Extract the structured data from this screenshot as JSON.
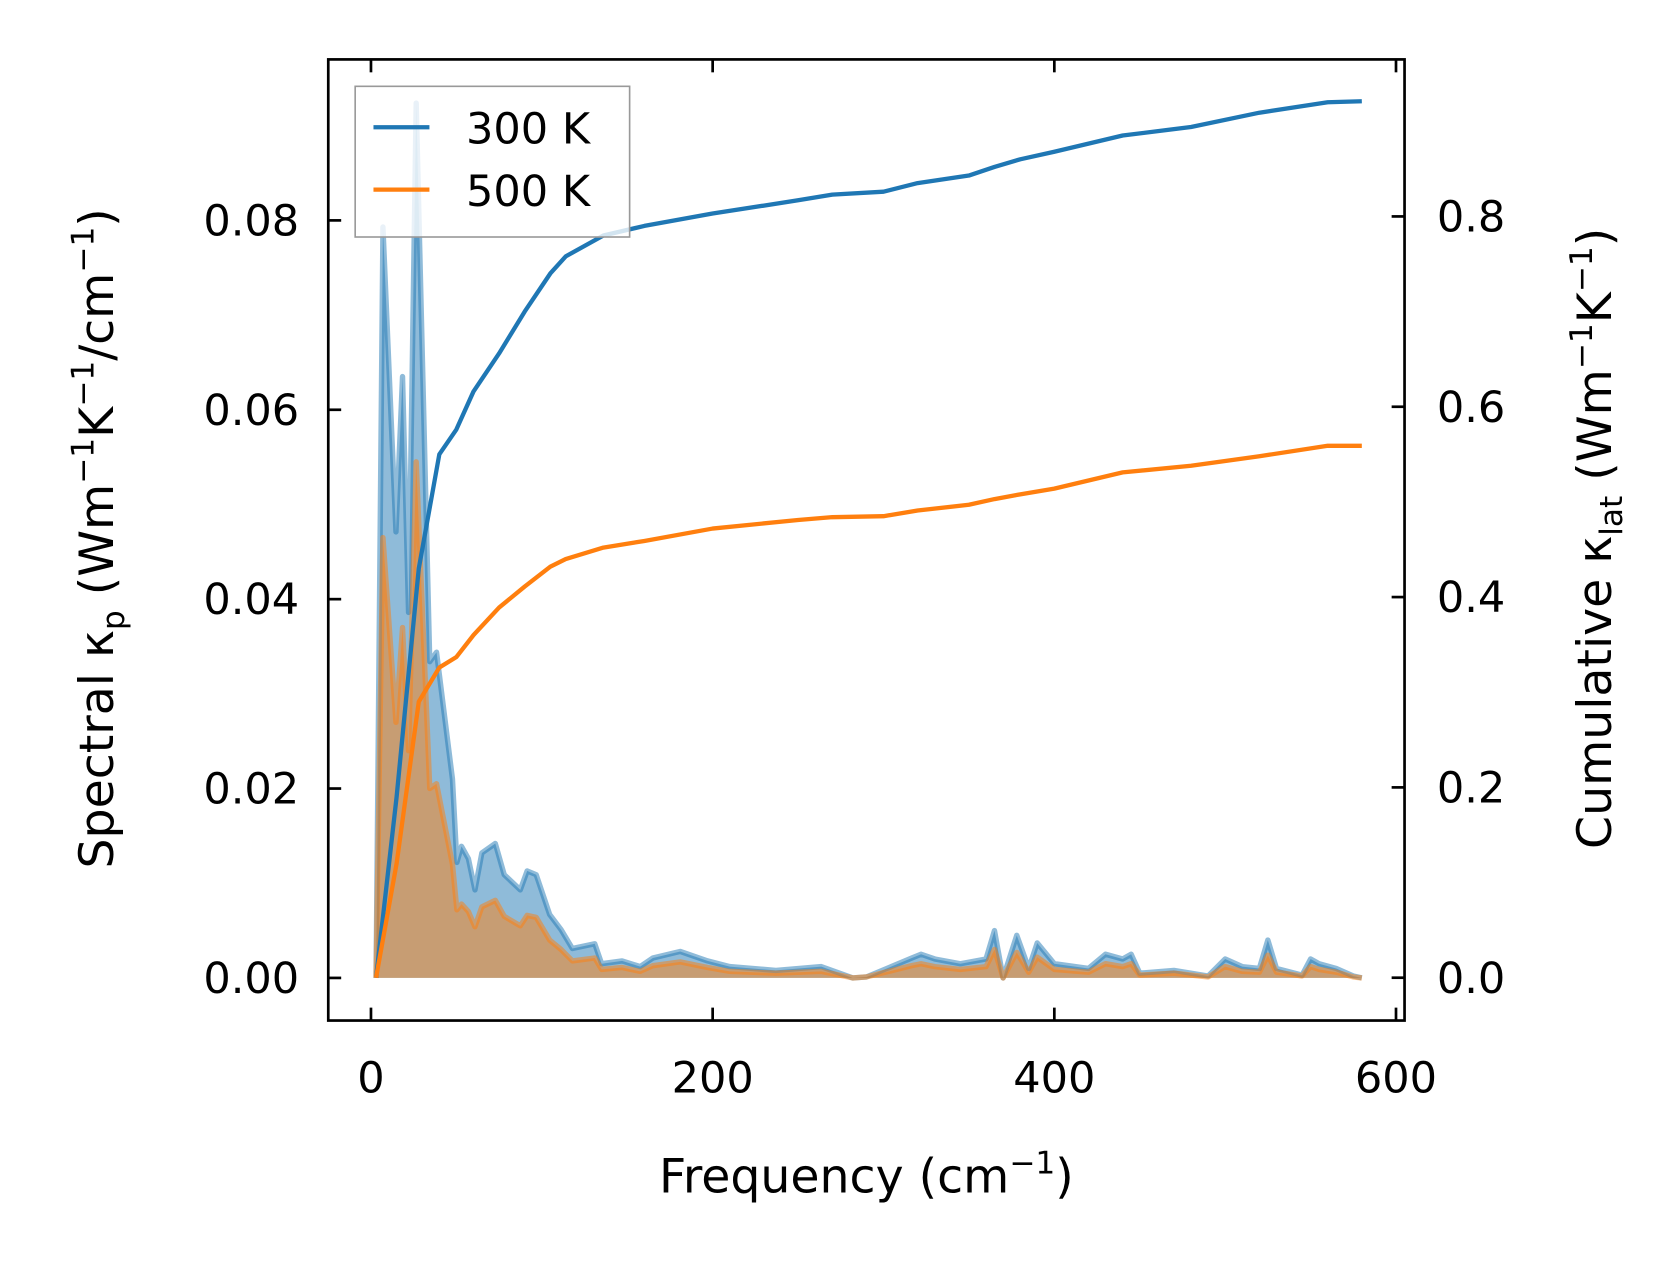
{
  "chart_data": {
    "type": "line",
    "xlabel": "Frequency (cm",
    "xlabel_sup": "−1",
    "xlabel_end": ")",
    "ylabel_left": {
      "pre": "Spectral κ",
      "sub": "p",
      "mid1": " (Wm",
      "sup1": "−1",
      "mid2": "K",
      "sup2": "−1",
      "mid3": "/cm",
      "sup3": "−1",
      "end": ")"
    },
    "ylabel_right": {
      "pre": "Cumulative κ",
      "sub": "lat",
      "mid1": " (Wm",
      "sup1": "−1",
      "mid2": "K",
      "sup2": "−1",
      "end": ")"
    },
    "xlim": [
      -25,
      605
    ],
    "ylim_left": [
      -0.0045,
      0.097
    ],
    "ylim_right": [
      -0.045,
      0.965
    ],
    "xticks": [
      "0",
      "200",
      "400",
      "600"
    ],
    "xtick_values": [
      0,
      200,
      400,
      600
    ],
    "yticks_left": [
      "0.00",
      "0.02",
      "0.04",
      "0.06",
      "0.08"
    ],
    "ytick_left_values": [
      0,
      0.02,
      0.04,
      0.06,
      0.08
    ],
    "yticks_right": [
      "0.0",
      "0.2",
      "0.4",
      "0.6",
      "0.8"
    ],
    "ytick_right_values": [
      0,
      0.2,
      0.4,
      0.6,
      0.8
    ],
    "legend": {
      "placement": "upper-left",
      "entries": [
        "300 K",
        "500 K"
      ]
    },
    "colors": {
      "300 K": "#1f77b4",
      "500 K": "#ff7f0e"
    },
    "spectral_x": [
      3,
      7,
      14.6,
      18.5,
      22,
      26.5,
      34.4,
      38.4,
      47.7,
      50.3,
      53,
      57,
      60.9,
      64.9,
      72.8,
      78,
      87.4,
      91.4,
      96.7,
      104.6,
      111.3,
      117.9,
      131,
      135,
      147,
      157.6,
      165,
      181,
      197,
      210,
      237,
      263.6,
      282,
      290,
      316.6,
      322,
      330,
      345,
      360,
      365,
      370,
      378,
      385,
      390,
      400,
      420,
      430,
      440,
      445,
      450,
      470,
      490,
      500,
      510,
      520,
      525,
      530,
      545,
      550,
      555,
      565,
      575,
      580
    ],
    "spectral_series": [
      {
        "name": "300 K",
        "values": [
          0,
          0.0793,
          0.0471,
          0.0635,
          0.0386,
          0.0924,
          0.0334,
          0.0344,
          0.021,
          0.0122,
          0.0139,
          0.0126,
          0.0093,
          0.0132,
          0.0142,
          0.0109,
          0.0093,
          0.0113,
          0.0109,
          0.0067,
          0.0051,
          0.0031,
          0.0036,
          0.0015,
          0.0018,
          0.0012,
          0.0021,
          0.0028,
          0.0018,
          0.0012,
          0.0008,
          0.0012,
          0,
          0.0001,
          0.0021,
          0.0025,
          0.002,
          0.0015,
          0.002,
          0.005,
          0,
          0.0045,
          0.001,
          0.0037,
          0.0015,
          0.001,
          0.0025,
          0.002,
          0.0025,
          0.0005,
          0.0008,
          0.0002,
          0.002,
          0.0012,
          0.001,
          0.004,
          0.001,
          0.0003,
          0.002,
          0.0015,
          0.001,
          0.0002,
          0
        ]
      },
      {
        "name": "500 K",
        "values": [
          0,
          0.0465,
          0.027,
          0.037,
          0.024,
          0.0545,
          0.02,
          0.0205,
          0.012,
          0.0072,
          0.0078,
          0.007,
          0.0054,
          0.0075,
          0.0082,
          0.0065,
          0.0055,
          0.0066,
          0.0064,
          0.004,
          0.003,
          0.0018,
          0.0021,
          0.0009,
          0.0011,
          0.0007,
          0.0013,
          0.0017,
          0.0011,
          0.0007,
          0.0005,
          0.0007,
          0,
          0.0001,
          0.0013,
          0.0015,
          0.0012,
          0.0009,
          0.0012,
          0.003,
          0,
          0.0027,
          0.0006,
          0.0022,
          0.0009,
          0.0006,
          0.0015,
          0.0012,
          0.0015,
          0.0003,
          0.0005,
          0.0001,
          0.0012,
          0.0007,
          0.0006,
          0.0024,
          0.0006,
          0.0002,
          0.0012,
          0.0009,
          0.0006,
          0.0001,
          0
        ]
      }
    ],
    "cumulative_x": [
      3,
      15,
      28,
      40,
      50,
      60,
      75,
      90,
      105,
      114,
      136,
      160,
      200,
      250,
      270,
      300,
      320,
      350,
      365,
      380,
      400,
      440,
      480,
      520,
      560,
      580
    ],
    "cumulative_series": [
      {
        "name": "300 K",
        "values": [
          0,
          0.19,
          0.43,
          0.55,
          0.576,
          0.616,
          0.656,
          0.7,
          0.74,
          0.758,
          0.78,
          0.79,
          0.803,
          0.817,
          0.823,
          0.826,
          0.835,
          0.843,
          0.852,
          0.86,
          0.868,
          0.885,
          0.894,
          0.909,
          0.92,
          0.921
        ]
      },
      {
        "name": "500 K",
        "values": [
          0,
          0.12,
          0.29,
          0.326,
          0.337,
          0.36,
          0.389,
          0.411,
          0.432,
          0.44,
          0.452,
          0.459,
          0.472,
          0.481,
          0.484,
          0.485,
          0.491,
          0.497,
          0.503,
          0.508,
          0.514,
          0.531,
          0.538,
          0.548,
          0.559,
          0.559
        ]
      }
    ]
  }
}
